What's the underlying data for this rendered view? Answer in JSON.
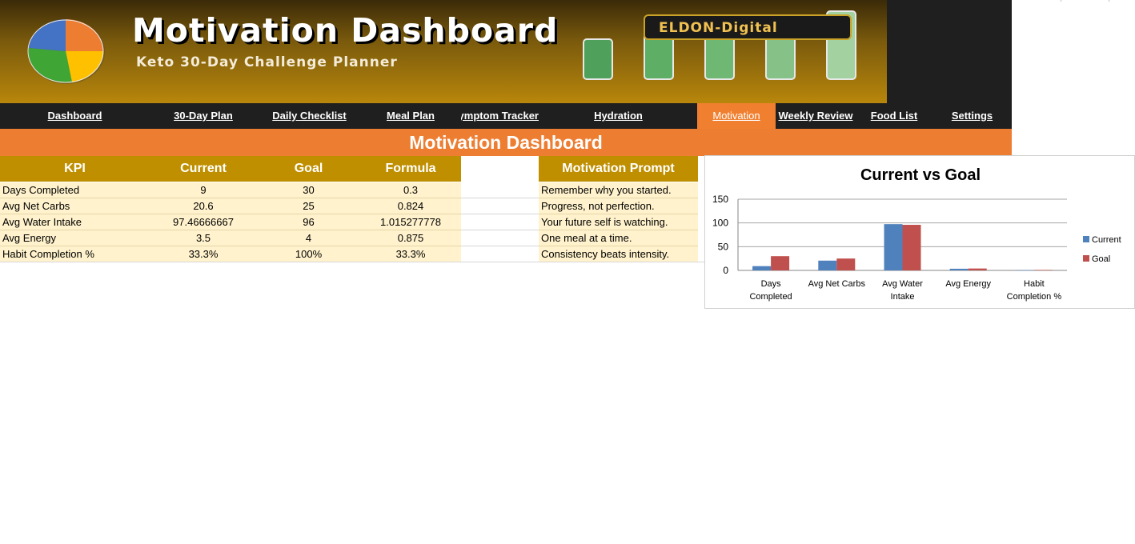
{
  "header": {
    "title": "Motivation Dashboard",
    "subtitle": "Keto 30-Day Challenge Planner",
    "brand": "ELDON-Digital"
  },
  "colors": {
    "banner_dark": "#3a2a08",
    "banner_gold": "#b8860b",
    "nav_bg": "#1f1f1f",
    "accent_orange": "#ed7d31",
    "table_header": "#bf8f00",
    "table_row": "#fff2cc",
    "series_current": "#4f81bd",
    "series_goal": "#c0504d"
  },
  "nav": {
    "items": [
      {
        "label": "Dashboard"
      },
      {
        "label": "30-Day Plan"
      },
      {
        "label": "Daily Checklist"
      },
      {
        "label": "Meal Plan"
      },
      {
        "label": "Symptom Tracker"
      },
      {
        "label": "Hydration"
      },
      {
        "label": "Motivation"
      },
      {
        "label": "Weekly Review"
      },
      {
        "label": "Food List"
      },
      {
        "label": "Settings"
      }
    ],
    "active": "Motivation"
  },
  "section_title": "Motivation Dashboard",
  "table": {
    "headers": [
      "KPI",
      "Current",
      "Goal",
      "Formula"
    ],
    "rows": [
      [
        "Days Completed",
        "9",
        "30",
        "0.3"
      ],
      [
        "Avg Net Carbs",
        "20.6",
        "25",
        "0.824"
      ],
      [
        "Avg Water Intake",
        "97.46666667",
        "96",
        "1.015277778"
      ],
      [
        "Avg Energy",
        "3.5",
        "4",
        "0.875"
      ],
      [
        "Habit Completion %",
        "33.3%",
        "100%",
        "33.3%"
      ]
    ]
  },
  "prompts": {
    "header": "Motivation Prompt",
    "items": [
      "Remember why you started.",
      "Progress, not perfection.",
      "Your future self is watching.",
      "One meal at a time.",
      "Consistency beats intensity."
    ]
  },
  "chart_data": {
    "type": "bar",
    "title": "Current vs Goal",
    "categories": [
      [
        "Days",
        "Completed"
      ],
      [
        "Avg Net Carbs"
      ],
      [
        "Avg Water",
        "Intake"
      ],
      [
        "Avg Energy"
      ],
      [
        "Habit",
        "Completion %"
      ]
    ],
    "series": [
      {
        "name": "Current",
        "values": [
          9,
          20.6,
          97.46666667,
          3.5,
          0.333
        ],
        "color": "#4f81bd"
      },
      {
        "name": "Goal",
        "values": [
          30,
          25,
          96,
          4,
          1
        ],
        "color": "#c0504d"
      }
    ],
    "ylim": [
      0,
      150
    ],
    "yticks": [
      0,
      50,
      100,
      150
    ],
    "grid": true,
    "legend": "right"
  }
}
